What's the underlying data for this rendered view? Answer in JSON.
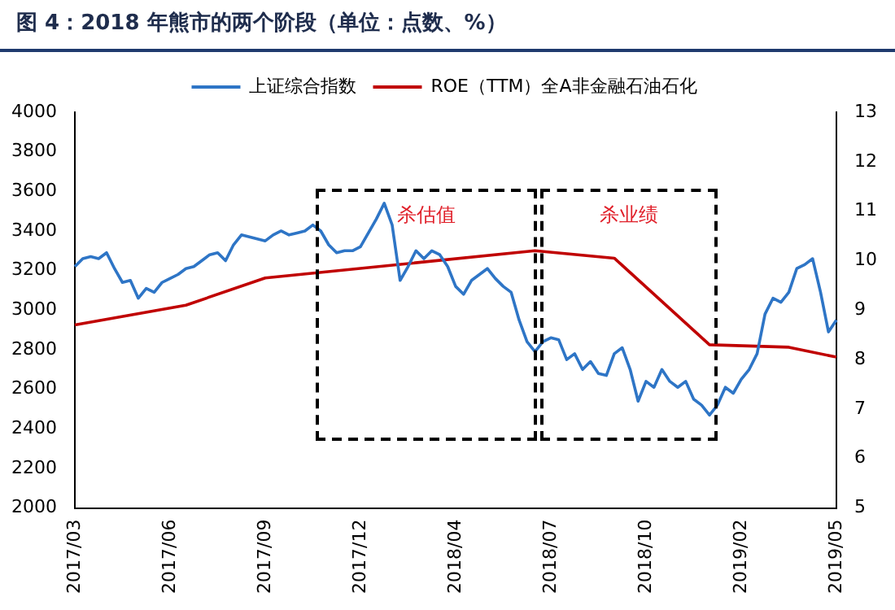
{
  "chart_data": {
    "type": "line",
    "title": "图 4：2018 年熊市的两个阶段（单位：点数、%）",
    "categories": [
      "2017/03",
      null,
      null,
      null,
      null,
      null,
      null,
      null,
      null,
      null,
      null,
      null,
      "2017/06",
      null,
      null,
      null,
      null,
      null,
      null,
      null,
      null,
      null,
      null,
      null,
      "2017/09",
      null,
      null,
      null,
      null,
      null,
      null,
      null,
      null,
      null,
      null,
      null,
      "2017/12",
      null,
      null,
      null,
      null,
      null,
      null,
      null,
      null,
      null,
      null,
      null,
      "2018/04",
      null,
      null,
      null,
      null,
      null,
      null,
      null,
      null,
      null,
      null,
      null,
      "2018/07",
      null,
      null,
      null,
      null,
      null,
      null,
      null,
      null,
      null,
      null,
      null,
      "2018/10",
      null,
      null,
      null,
      null,
      null,
      null,
      null,
      null,
      null,
      null,
      null,
      "2019/02",
      null,
      null,
      null,
      null,
      null,
      null,
      null,
      null,
      null,
      null,
      null,
      "2019/05"
    ],
    "series": [
      {
        "name": "上证综合指数",
        "color": "#2e75c6",
        "values": [
          3220,
          3260,
          3270,
          3260,
          3290,
          3210,
          3140,
          3150,
          3060,
          3110,
          3090,
          3140,
          3160,
          3180,
          3210,
          3220,
          3250,
          3280,
          3290,
          3250,
          3330,
          3380,
          3370,
          3360,
          3350,
          3380,
          3400,
          3380,
          3390,
          3400,
          3430,
          3400,
          3330,
          3290,
          3300,
          3300,
          3320,
          3390,
          3460,
          3540,
          3430,
          3150,
          3220,
          3300,
          3260,
          3300,
          3280,
          3220,
          3120,
          3080,
          3150,
          3180,
          3210,
          3160,
          3120,
          3090,
          2950,
          2840,
          2790,
          2840,
          2860,
          2850,
          2750,
          2780,
          2700,
          2740,
          2680,
          2670,
          2780,
          2810,
          2700,
          2540,
          2640,
          2610,
          2700,
          2640,
          2610,
          2640,
          2550,
          2520,
          2470,
          2520,
          2610,
          2580,
          2650,
          2700,
          2780,
          2980,
          3060,
          3040,
          3090,
          3210,
          3230,
          3260,
          3090,
          2890,
          2950
        ]
      },
      {
        "name": "ROE（TTM）全A非金融石油石化",
        "color": "#c00000",
        "axis": "y2",
        "values": [
          8.7,
          null,
          null,
          null,
          null,
          null,
          null,
          null,
          null,
          null,
          null,
          null,
          null,
          null,
          9.1,
          null,
          null,
          null,
          null,
          null,
          null,
          null,
          null,
          null,
          9.65,
          null,
          null,
          null,
          null,
          null,
          null,
          null,
          null,
          null,
          null,
          null,
          null,
          null,
          null,
          null,
          null,
          null,
          null,
          null,
          null,
          null,
          null,
          null,
          null,
          null,
          null,
          null,
          null,
          null,
          null,
          null,
          null,
          null,
          10.2,
          null,
          null,
          null,
          null,
          null,
          null,
          null,
          null,
          null,
          10.05,
          null,
          null,
          null,
          null,
          null,
          null,
          null,
          null,
          null,
          null,
          null,
          8.3,
          null,
          null,
          null,
          null,
          null,
          null,
          null,
          null,
          null,
          8.25,
          null,
          null,
          null,
          null,
          null,
          8.05
        ]
      }
    ],
    "ylim": [
      2000,
      4000
    ],
    "yticks": [
      2000,
      2200,
      2400,
      2600,
      2800,
      3000,
      3200,
      3400,
      3600,
      3800,
      4000
    ],
    "y2lim": [
      5,
      13
    ],
    "y2ticks": [
      5,
      6,
      7,
      8,
      9,
      10,
      11,
      12,
      13
    ],
    "annotations": [
      "杀估值",
      "杀业绩"
    ],
    "grid": false,
    "legend": "top",
    "marker": "none",
    "line_style": "solid"
  }
}
